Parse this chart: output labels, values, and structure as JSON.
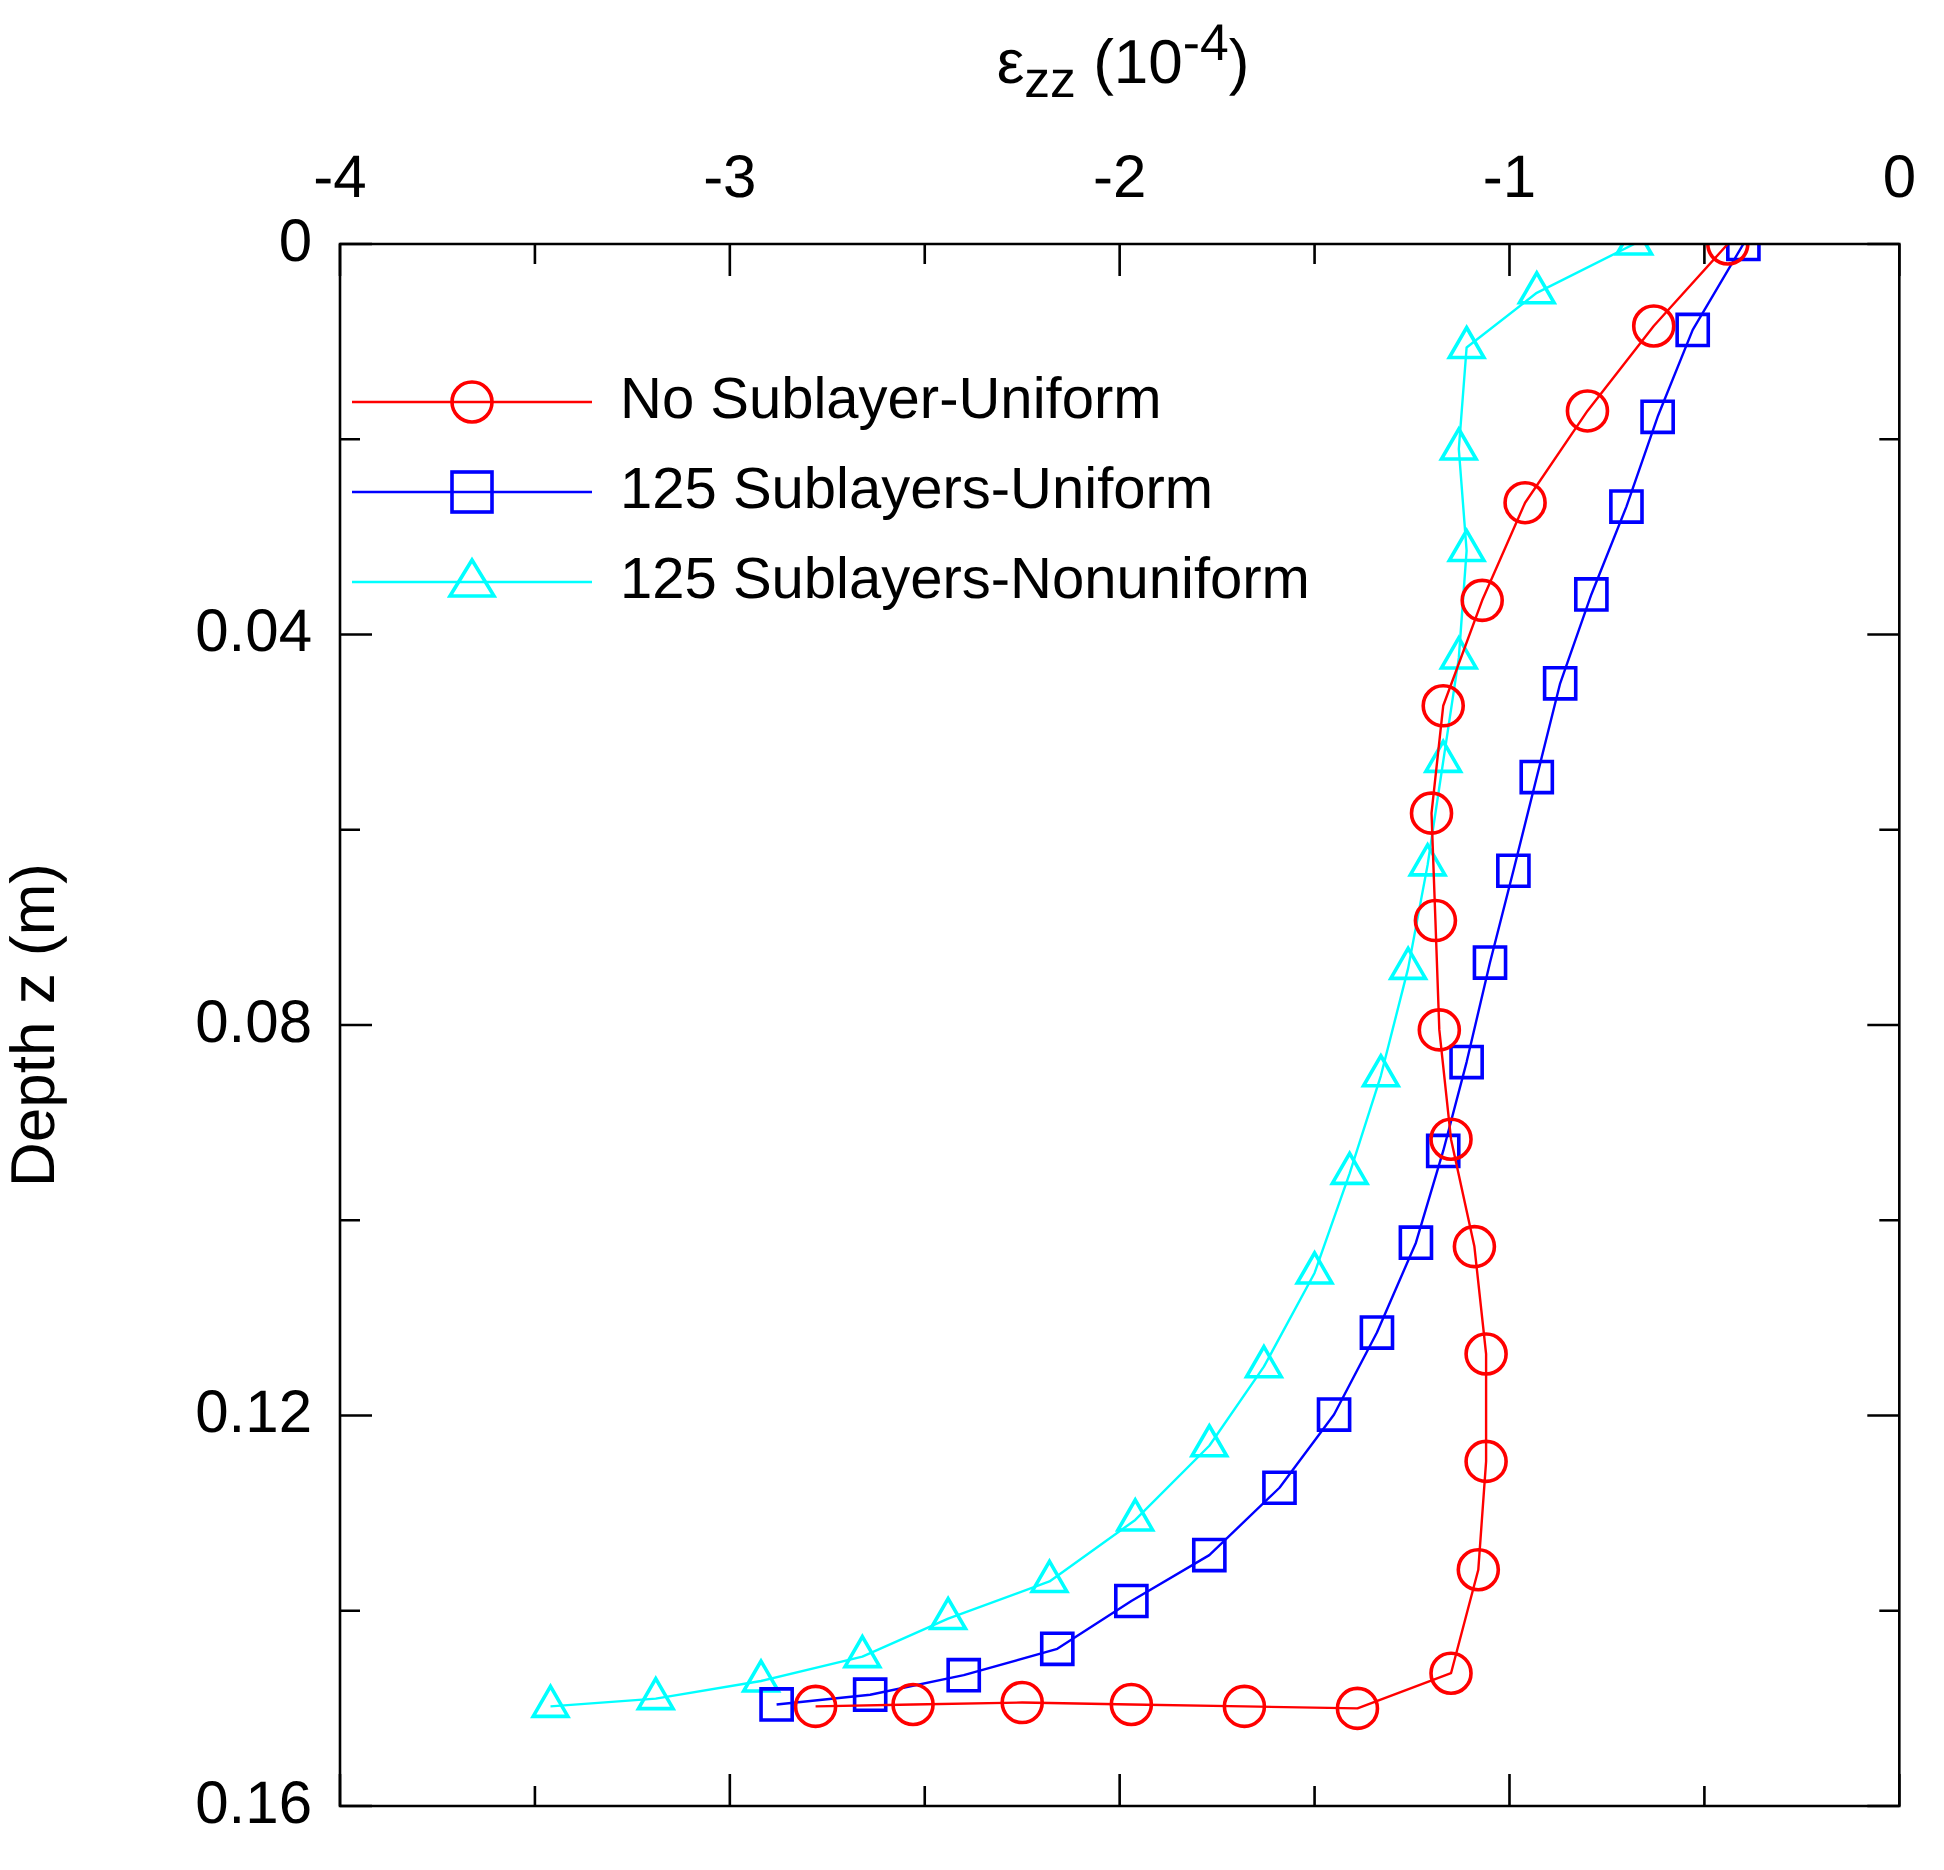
{
  "chart_data": {
    "type": "line",
    "xlabel": "ε$_{zz}$ (10$^{-4}$)",
    "ylabel": "Depth z (m)",
    "xlim": [
      -4,
      0
    ],
    "xticks": [
      -4,
      {
        "value": -3.5,
        "label": null
      },
      -3,
      {
        "value": -2.5,
        "label": null
      },
      -2,
      {
        "value": -1.5,
        "label": null
      },
      -1,
      {
        "value": -0.5,
        "label": null
      },
      0
    ],
    "ylim": [
      0.16,
      0
    ],
    "yticks": [
      0,
      {
        "value": 0.02,
        "label": null
      },
      0.04,
      {
        "value": 0.06,
        "label": null
      },
      0.08,
      {
        "value": 0.1,
        "label": null
      },
      0.12,
      {
        "value": 0.14,
        "label": null
      },
      0.16
    ],
    "grid": false,
    "legend": "top left",
    "line_style": "solid",
    "series": [
      {
        "name": "No Sublayer-Uniform",
        "color": "#ff0000",
        "marker": "circle",
        "x": [
          -0.44,
          -0.63,
          -0.8,
          -0.96,
          -1.07,
          -1.17,
          -1.2,
          -1.19,
          -1.18,
          -1.15,
          -1.09,
          -1.06,
          -1.06,
          -1.08,
          -1.15,
          -1.39,
          -1.68,
          -1.97,
          -2.25,
          -2.53,
          -2.78
        ],
        "values": [
          0,
          0.0084,
          0.0171,
          0.0265,
          0.0365,
          0.0473,
          0.0583,
          0.0693,
          0.0805,
          0.0917,
          0.1027,
          0.1137,
          0.1247,
          0.1358,
          0.1464,
          0.15,
          0.1498,
          0.1496,
          0.1494,
          0.1496,
          0.1498
        ]
      },
      {
        "name": "125 Sublayers-Uniform",
        "color": "#0000ff",
        "marker": "square",
        "x": [
          -0.4,
          -0.53,
          -0.62,
          -0.7,
          -0.79,
          -0.87,
          -0.93,
          -0.99,
          -1.05,
          -1.11,
          -1.17,
          -1.24,
          -1.34,
          -1.45,
          -1.59,
          -1.77,
          -1.97,
          -2.16,
          -2.4,
          -2.64,
          -2.88
        ],
        "values": [
          0,
          0.0088,
          0.0177,
          0.0269,
          0.0359,
          0.045,
          0.0546,
          0.0642,
          0.0736,
          0.0838,
          0.0929,
          0.1023,
          0.1115,
          0.1199,
          0.1274,
          0.1343,
          0.139,
          0.1439,
          0.1466,
          0.1486,
          0.1496
        ]
      },
      {
        "name": "125 Sublayers-Nonuniform",
        "color": "#00ffff",
        "marker": "triangle",
        "x": [
          -0.68,
          -0.93,
          -1.11,
          -1.13,
          -1.11,
          -1.13,
          -1.17,
          -1.21,
          -1.26,
          -1.33,
          -1.41,
          -1.5,
          -1.63,
          -1.77,
          -1.96,
          -2.18,
          -2.44,
          -2.66,
          -2.92,
          -3.19,
          -3.46
        ],
        "values": [
          0,
          0.005,
          0.0106,
          0.021,
          0.0314,
          0.0424,
          0.053,
          0.0636,
          0.0742,
          0.0852,
          0.0952,
          0.1054,
          0.115,
          0.1231,
          0.1307,
          0.137,
          0.1408,
          0.1447,
          0.1472,
          0.149,
          0.1498
        ]
      }
    ]
  }
}
